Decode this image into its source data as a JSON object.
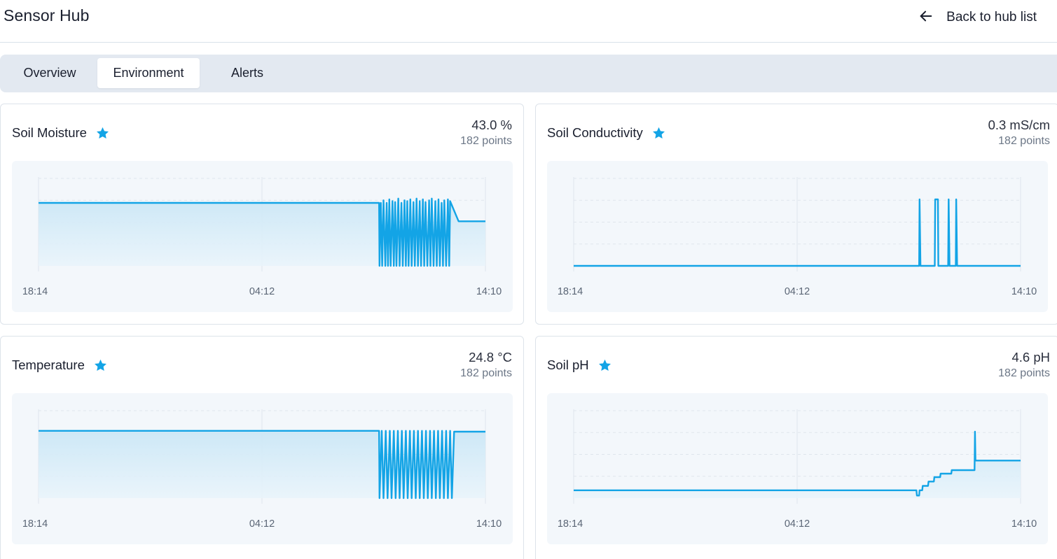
{
  "header": {
    "title": "Sensor Hub",
    "back_label": "Back to hub list",
    "back_icon": "arrow-left-icon"
  },
  "tabs": [
    {
      "label": "Overview",
      "active": false
    },
    {
      "label": "Environment",
      "active": true
    },
    {
      "label": "Alerts",
      "active": false
    }
  ],
  "colors": {
    "accent": "#13a4e6",
    "plot_bg": "#f3f7fb",
    "fill_top": "#cbe7f6",
    "fill_bottom": "#e9f4fb",
    "grid": "#dfe5ec"
  },
  "cards": [
    {
      "title": "Soil Moisture",
      "favorite_icon": "star-icon",
      "value": "43.0 %",
      "points": "182 points",
      "ticks": [
        "18:14",
        "04:12",
        "14:10"
      ]
    },
    {
      "title": "Soil Conductivity",
      "favorite_icon": "star-icon",
      "value": "0.3 mS/cm",
      "points": "182 points",
      "ticks": [
        "18:14",
        "04:12",
        "14:10"
      ]
    },
    {
      "title": "Temperature",
      "favorite_icon": "star-icon",
      "value": "24.8 °C",
      "points": "182 points",
      "ticks": [
        "18:14",
        "04:12",
        "14:10"
      ]
    },
    {
      "title": "Soil pH",
      "favorite_icon": "star-icon",
      "value": "4.6 pH",
      "points": "182 points",
      "ticks": [
        "18:14",
        "04:12",
        "14:10"
      ]
    }
  ],
  "chart_data": [
    {
      "type": "area",
      "title": "Soil Moisture",
      "x_ticks": [
        "18:14",
        "04:12",
        "14:10"
      ],
      "series": [
        {
          "values": [
            [
              0,
              0.72
            ],
            [
              0.762,
              0.72
            ],
            [
              0.763,
              0.0
            ],
            [
              0.766,
              0.72
            ],
            [
              0.769,
              0.0
            ],
            [
              0.772,
              0.75
            ],
            [
              0.776,
              0.0
            ],
            [
              0.779,
              0.72
            ],
            [
              0.782,
              0.0
            ],
            [
              0.785,
              0.76
            ],
            [
              0.788,
              0.0
            ],
            [
              0.792,
              0.74
            ],
            [
              0.795,
              0.0
            ],
            [
              0.798,
              0.73
            ],
            [
              0.801,
              0.0
            ],
            [
              0.805,
              0.77
            ],
            [
              0.808,
              0.0
            ],
            [
              0.812,
              0.72
            ],
            [
              0.815,
              0.0
            ],
            [
              0.819,
              0.75
            ],
            [
              0.822,
              0.0
            ],
            [
              0.825,
              0.74
            ],
            [
              0.828,
              0.0
            ],
            [
              0.832,
              0.76
            ],
            [
              0.835,
              0.0
            ],
            [
              0.839,
              0.73
            ],
            [
              0.842,
              0.0
            ],
            [
              0.846,
              0.77
            ],
            [
              0.849,
              0.0
            ],
            [
              0.853,
              0.74
            ],
            [
              0.856,
              0.0
            ],
            [
              0.86,
              0.76
            ],
            [
              0.863,
              0.0
            ],
            [
              0.866,
              0.73
            ],
            [
              0.87,
              0.0
            ],
            [
              0.874,
              0.75
            ],
            [
              0.877,
              0.0
            ],
            [
              0.88,
              0.77
            ],
            [
              0.884,
              0.0
            ],
            [
              0.888,
              0.74
            ],
            [
              0.891,
              0.0
            ],
            [
              0.895,
              0.76
            ],
            [
              0.898,
              0.0
            ],
            [
              0.902,
              0.72
            ],
            [
              0.905,
              0.0
            ],
            [
              0.908,
              0.75
            ],
            [
              0.912,
              0.0
            ],
            [
              0.916,
              0.76
            ],
            [
              0.919,
              0.0
            ],
            [
              0.921,
              0.74
            ],
            [
              0.94,
              0.51
            ],
            [
              1.0,
              0.51
            ]
          ]
        }
      ]
    },
    {
      "type": "line",
      "title": "Soil Conductivity",
      "x_ticks": [
        "18:14",
        "04:12",
        "14:10"
      ],
      "series": [
        {
          "values": [
            [
              0,
              0.0
            ],
            [
              0.773,
              0.0
            ],
            [
              0.774,
              0.76
            ],
            [
              0.776,
              0.0
            ],
            [
              0.808,
              0.0
            ],
            [
              0.809,
              0.76
            ],
            [
              0.815,
              0.76
            ],
            [
              0.816,
              0.0
            ],
            [
              0.838,
              0.0
            ],
            [
              0.839,
              0.76
            ],
            [
              0.841,
              0.0
            ],
            [
              0.855,
              0.0
            ],
            [
              0.856,
              0.76
            ],
            [
              0.858,
              0.0
            ],
            [
              0.898,
              0.0
            ],
            [
              1.0,
              0.0
            ]
          ]
        }
      ]
    },
    {
      "type": "area",
      "title": "Temperature",
      "x_ticks": [
        "18:14",
        "04:12",
        "14:10"
      ],
      "series": [
        {
          "values": [
            [
              0,
              0.77
            ],
            [
              0.762,
              0.77
            ],
            [
              0.763,
              0.0
            ],
            [
              0.768,
              0.77
            ],
            [
              0.772,
              0.0
            ],
            [
              0.777,
              0.77
            ],
            [
              0.781,
              0.0
            ],
            [
              0.786,
              0.77
            ],
            [
              0.79,
              0.0
            ],
            [
              0.795,
              0.77
            ],
            [
              0.799,
              0.0
            ],
            [
              0.804,
              0.77
            ],
            [
              0.808,
              0.0
            ],
            [
              0.813,
              0.77
            ],
            [
              0.817,
              0.0
            ],
            [
              0.822,
              0.77
            ],
            [
              0.826,
              0.0
            ],
            [
              0.831,
              0.77
            ],
            [
              0.835,
              0.0
            ],
            [
              0.84,
              0.77
            ],
            [
              0.844,
              0.0
            ],
            [
              0.849,
              0.77
            ],
            [
              0.853,
              0.0
            ],
            [
              0.858,
              0.77
            ],
            [
              0.862,
              0.0
            ],
            [
              0.867,
              0.77
            ],
            [
              0.871,
              0.0
            ],
            [
              0.876,
              0.77
            ],
            [
              0.88,
              0.0
            ],
            [
              0.885,
              0.77
            ],
            [
              0.889,
              0.0
            ],
            [
              0.894,
              0.77
            ],
            [
              0.898,
              0.0
            ],
            [
              0.903,
              0.77
            ],
            [
              0.907,
              0.0
            ],
            [
              0.912,
              0.77
            ],
            [
              0.916,
              0.0
            ],
            [
              0.921,
              0.77
            ],
            [
              0.925,
              0.0
            ],
            [
              0.93,
              0.76
            ],
            [
              1.0,
              0.76
            ]
          ]
        }
      ]
    },
    {
      "type": "area",
      "title": "Soil pH",
      "x_ticks": [
        "18:14",
        "04:12",
        "14:10"
      ],
      "series": [
        {
          "values": [
            [
              0,
              0.09
            ],
            [
              0.767,
              0.09
            ],
            [
              0.768,
              0.03
            ],
            [
              0.773,
              0.03
            ],
            [
              0.774,
              0.09
            ],
            [
              0.78,
              0.09
            ],
            [
              0.781,
              0.14
            ],
            [
              0.793,
              0.14
            ],
            [
              0.794,
              0.19
            ],
            [
              0.806,
              0.19
            ],
            [
              0.807,
              0.24
            ],
            [
              0.82,
              0.24
            ],
            [
              0.821,
              0.28
            ],
            [
              0.845,
              0.28
            ],
            [
              0.846,
              0.32
            ],
            [
              0.897,
              0.32
            ],
            [
              0.898,
              0.76
            ],
            [
              0.899,
              0.43
            ],
            [
              1.0,
              0.43
            ]
          ]
        }
      ]
    }
  ]
}
